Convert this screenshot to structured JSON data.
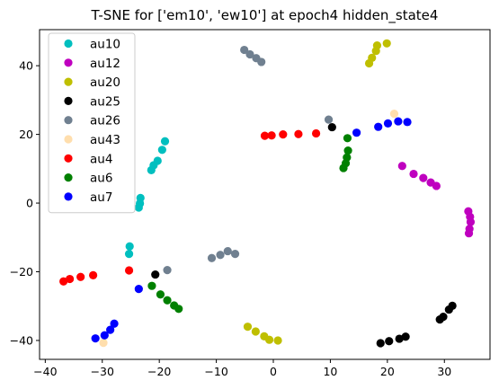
{
  "chart_data": {
    "type": "scatter",
    "title": "T-SNE for ['em10', 'ew10'] at epoch4 hidden_state4",
    "xlabel": "",
    "ylabel": "",
    "xlim": [
      -41,
      38
    ],
    "ylim": [
      -45.5,
      50.5
    ],
    "xticks": [
      -40,
      -30,
      -20,
      -10,
      0,
      10,
      20,
      30
    ],
    "yticks": [
      -40,
      -20,
      0,
      20,
      40
    ],
    "grid": false,
    "legend_position": "top-left",
    "series": [
      {
        "name": "au10",
        "color": "#00bfbf",
        "points": [
          [
            -19,
            18
          ],
          [
            -19.5,
            15.5
          ],
          [
            -20.3,
            12.3
          ],
          [
            -21,
            11
          ],
          [
            -21.4,
            9.6
          ],
          [
            -23.3,
            1.5
          ],
          [
            -23.4,
            -0.1
          ],
          [
            -23.6,
            -1.3
          ],
          [
            -25.2,
            -12.6
          ],
          [
            -25.3,
            -14.8
          ]
        ]
      },
      {
        "name": "au12",
        "color": "#bf00bf",
        "points": [
          [
            22.6,
            10.8
          ],
          [
            24.6,
            8.5
          ],
          [
            26.3,
            7.3
          ],
          [
            27.6,
            6
          ],
          [
            28.6,
            5
          ],
          [
            34.2,
            -2.4
          ],
          [
            34.5,
            -4
          ],
          [
            34.6,
            -5.5
          ],
          [
            34.4,
            -7.5
          ],
          [
            34.3,
            -8.8
          ]
        ]
      },
      {
        "name": "au20",
        "color": "#bfbf00",
        "points": [
          [
            16.8,
            40.7
          ],
          [
            17.3,
            42.3
          ],
          [
            18,
            44.3
          ],
          [
            18.2,
            45.9
          ],
          [
            19.9,
            46.5
          ],
          [
            -4.5,
            -36
          ],
          [
            -3.1,
            -37.4
          ],
          [
            -1.6,
            -38.8
          ],
          [
            -0.7,
            -39.8
          ],
          [
            0.8,
            -40
          ]
        ]
      },
      {
        "name": "au25",
        "color": "#000000",
        "points": [
          [
            10.3,
            22.1
          ],
          [
            -20.7,
            -20.8
          ],
          [
            18.8,
            -40.8
          ],
          [
            20.3,
            -40.2
          ],
          [
            22.1,
            -39.5
          ],
          [
            23.2,
            -38.9
          ],
          [
            29.2,
            -33.9
          ],
          [
            29.8,
            -33.1
          ],
          [
            30.8,
            -31
          ],
          [
            31.4,
            -29.9
          ]
        ]
      },
      {
        "name": "au26",
        "color": "#708090",
        "points": [
          [
            -5.1,
            44.6
          ],
          [
            -4.1,
            43.3
          ],
          [
            -3,
            42.2
          ],
          [
            -2.1,
            41.1
          ],
          [
            9.7,
            24.3
          ],
          [
            -18.6,
            -19.5
          ],
          [
            -10.8,
            -16
          ],
          [
            -9.3,
            -15.1
          ],
          [
            -8,
            -14
          ],
          [
            -6.7,
            -14.8
          ]
        ]
      },
      {
        "name": "au43",
        "color": "#ffdead",
        "points": [
          [
            21.2,
            26
          ],
          [
            -29.8,
            -40.7
          ]
        ]
      },
      {
        "name": "au4",
        "color": "#ff0000",
        "points": [
          [
            -1.5,
            19.6
          ],
          [
            -0.3,
            19.7
          ],
          [
            1.7,
            20
          ],
          [
            4.4,
            20.1
          ],
          [
            7.5,
            20.3
          ],
          [
            -25.3,
            -19.6
          ],
          [
            -31.6,
            -21
          ],
          [
            -33.8,
            -21.5
          ],
          [
            -35.7,
            -22.1
          ],
          [
            -36.8,
            -22.8
          ]
        ]
      },
      {
        "name": "au6",
        "color": "#008000",
        "points": [
          [
            13,
            18.9
          ],
          [
            13.1,
            15.3
          ],
          [
            12.9,
            13.3
          ],
          [
            12.7,
            11.6
          ],
          [
            12.3,
            10.2
          ],
          [
            -21.3,
            -24.1
          ],
          [
            -19.8,
            -26.6
          ],
          [
            -18.6,
            -28.3
          ],
          [
            -17.4,
            -29.8
          ],
          [
            -16.6,
            -30.8
          ]
        ]
      },
      {
        "name": "au7",
        "color": "#0000ff",
        "points": [
          [
            14.6,
            20.5
          ],
          [
            18.4,
            22.2
          ],
          [
            20.1,
            23.2
          ],
          [
            21.9,
            23.8
          ],
          [
            23.5,
            23.6
          ],
          [
            -23.6,
            -25
          ],
          [
            -27.9,
            -35.1
          ],
          [
            -28.6,
            -36.9
          ],
          [
            -29.6,
            -38.5
          ],
          [
            -31.2,
            -39.4
          ]
        ]
      }
    ]
  }
}
